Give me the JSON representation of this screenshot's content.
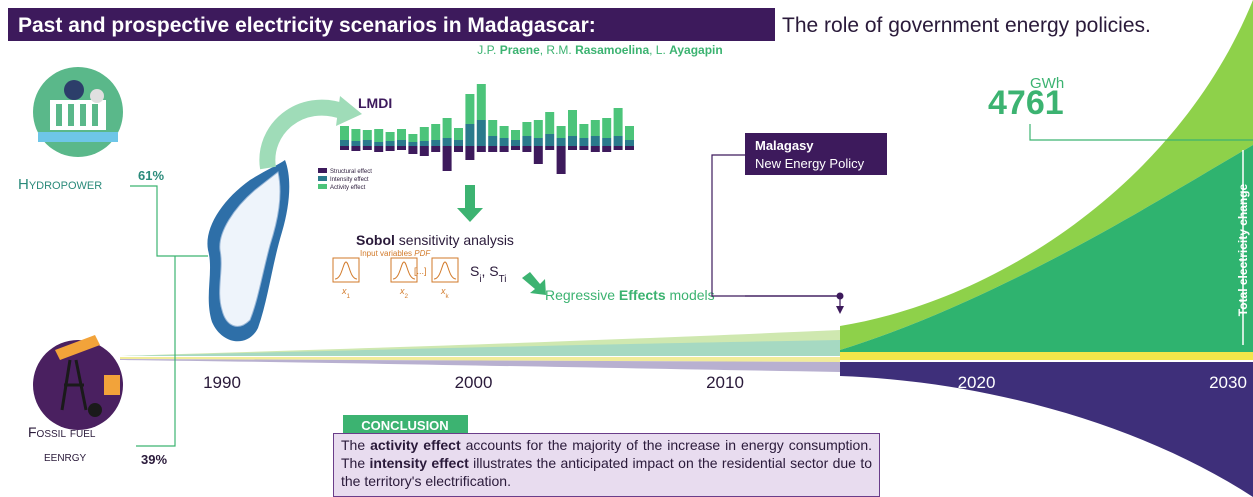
{
  "header": {
    "title": "Past and prospective electricity scenarios in Madagascar:",
    "subtitle": "The role of government energy policies.",
    "authors": [
      {
        "text": "J.P. "
      },
      {
        "text": "Praene",
        "bold": true
      },
      {
        "text": ", R.M. "
      },
      {
        "text": "Rasamoelina",
        "bold": true
      },
      {
        "text": ", L. "
      },
      {
        "text": "Ayagapin",
        "bold": true
      }
    ]
  },
  "sources": {
    "hydropower": {
      "label": "Hydropower",
      "share": "61%"
    },
    "fossil": {
      "label_lines": [
        "Fossil fuel",
        "eenrgy"
      ],
      "share": "39%"
    }
  },
  "method": {
    "lmdi": {
      "title": "LMDI",
      "legend": [
        {
          "name": "Structural effect",
          "color": "#3d1a5c"
        },
        {
          "name": "Intensity effect",
          "color": "#2a7a8c"
        },
        {
          "name": "Activity effect",
          "color": "#4cc47a"
        }
      ]
    },
    "sobol": {
      "title": [
        {
          "text": "Sobol",
          "bold": true
        },
        {
          "text": " sensitivity analysis"
        }
      ],
      "pdf_label": [
        {
          "text": "Input variables "
        },
        {
          "text": "PDF",
          "italic": true
        }
      ],
      "variables": [
        [
          {
            "text": "x",
            "italic": true
          },
          {
            "text": "1",
            "sub": true
          }
        ],
        [
          {
            "text": "x",
            "italic": true
          },
          {
            "text": "2",
            "sub": true
          }
        ],
        [
          {
            "text": "x",
            "italic": true
          },
          {
            "text": "k",
            "sub": true
          }
        ]
      ],
      "ellipsis": "[...]",
      "indices": [
        {
          "text": "S"
        },
        {
          "text": "i",
          "sub": true
        },
        {
          "text": ", S"
        },
        {
          "text": "Ti",
          "sub": true
        }
      ]
    },
    "regression": [
      {
        "text": "Regressive "
      },
      {
        "text": "Effects",
        "bold": true
      },
      {
        "text": " models"
      }
    ]
  },
  "policy": {
    "lines": [
      "Malagasy",
      "New Energy Policy"
    ]
  },
  "projection": {
    "unit": "GWh",
    "value": "4761",
    "axis_label": "Total electricity change"
  },
  "timeline": {
    "years": [
      "1990",
      "2000",
      "2010",
      "2020",
      "2030"
    ]
  },
  "conclusion": {
    "title": "CONCLUSION",
    "text": [
      {
        "text": "The "
      },
      {
        "text": "activity effect",
        "bold": true
      },
      {
        "text": " accounts for the majority of the increase in energy consumption. The "
      },
      {
        "text": "intensity effect",
        "bold": true
      },
      {
        "text": " illustrates the anticipated impact on the residential sector due to the territory's electrification."
      }
    ]
  }
}
